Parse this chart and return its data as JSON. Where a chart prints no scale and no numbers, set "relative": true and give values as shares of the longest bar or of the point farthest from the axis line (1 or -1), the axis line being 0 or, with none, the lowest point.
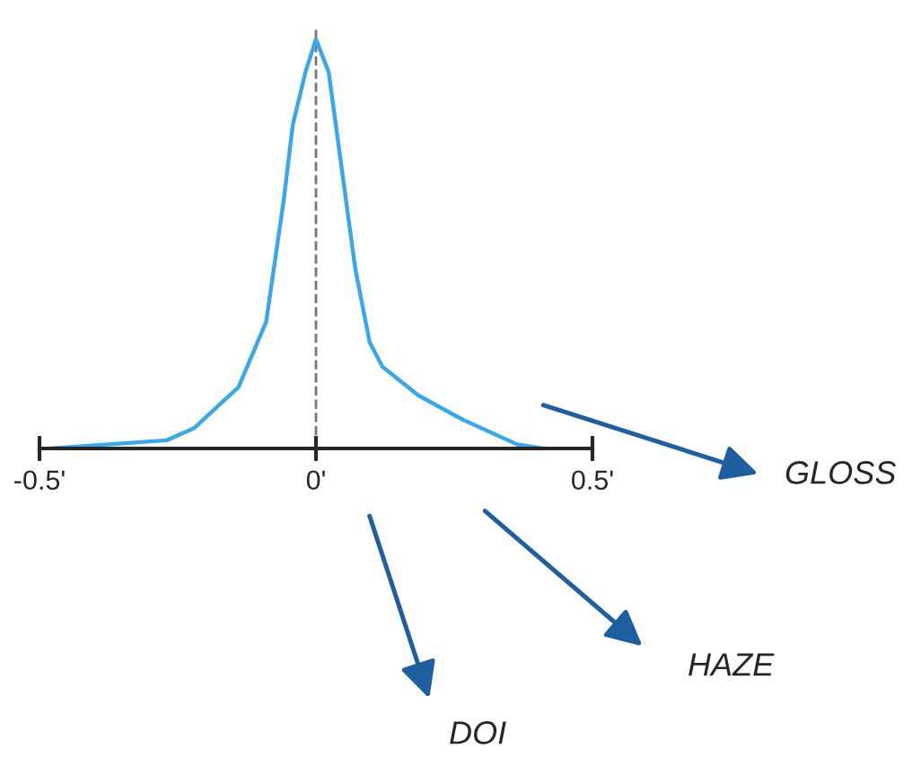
{
  "chart_data": {
    "type": "line",
    "relative": true,
    "x": [
      -0.48,
      -0.27,
      -0.22,
      -0.14,
      -0.09,
      -0.058,
      -0.042,
      -0.019,
      0,
      0.023,
      0.049,
      0.071,
      0.097,
      0.12,
      0.185,
      0.266,
      0.364,
      0.41
    ],
    "series": [
      {
        "color": "#3aa8e8",
        "values": [
          0,
          0.02,
          0.05,
          0.15,
          0.31,
          0.61,
          0.79,
          0.92,
          1,
          0.92,
          0.66,
          0.44,
          0.26,
          0.2,
          0.13,
          0.07,
          0.01,
          0
        ]
      }
    ],
    "xlim": [
      -0.5,
      0.5
    ],
    "xticks": [
      {
        "value": -0.5,
        "label": "-0.5'"
      },
      {
        "value": 0,
        "label": "0'"
      },
      {
        "value": 0.5,
        "label": "0.5'"
      }
    ],
    "ref_lines": [
      {
        "axis": "x",
        "value": 0,
        "color": "#777777",
        "line_style": "dashed"
      }
    ],
    "annotations": [
      "GLOSS",
      "HAZE",
      "DOI"
    ],
    "grid": false,
    "legend": false,
    "marker": "none",
    "line_style": "solid"
  }
}
